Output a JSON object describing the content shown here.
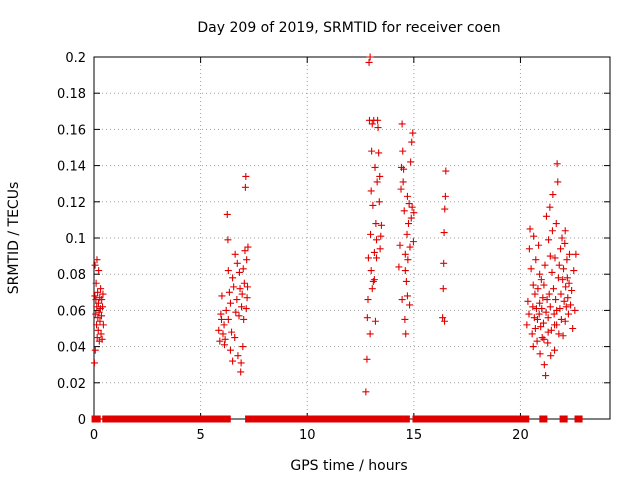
{
  "chart_data": {
    "type": "scatter",
    "title": "Day 209 of 2019, SRMTID for receiver coen",
    "xlabel": "GPS time / hours",
    "ylabel": "SRMTID / TECUs",
    "xlim": [
      0,
      24.2
    ],
    "ylim": [
      0,
      0.2
    ],
    "xticks": [
      0,
      5,
      10,
      15,
      20
    ],
    "xtick_labels": [
      "0",
      "5",
      "10",
      "15",
      "20"
    ],
    "yticks": [
      0,
      0.02,
      0.04,
      0.06,
      0.08,
      0.1,
      0.12,
      0.14,
      0.16,
      0.18,
      0.2
    ],
    "ytick_labels": [
      "0",
      "0.02",
      "0.04",
      "0.06",
      "0.08",
      "0.1",
      "0.12",
      "0.14",
      "0.16",
      "0.18",
      "0.2"
    ],
    "grid": true,
    "marker": "+",
    "series_color": "#e00000",
    "series": [
      {
        "name": "SRMTID",
        "points": [
          [
            0.02,
            0.031
          ],
          [
            0.04,
            0.068
          ],
          [
            0.05,
            0.085
          ],
          [
            0.06,
            0.038
          ],
          [
            0.08,
            0.058
          ],
          [
            0.09,
            0.066
          ],
          [
            0.1,
            0.075
          ],
          [
            0.12,
            0.052
          ],
          [
            0.13,
            0.062
          ],
          [
            0.14,
            0.088
          ],
          [
            0.15,
            0.045
          ],
          [
            0.17,
            0.07
          ],
          [
            0.18,
            0.056
          ],
          [
            0.2,
            0.049
          ],
          [
            0.21,
            0.064
          ],
          [
            0.22,
            0.082
          ],
          [
            0.24,
            0.059
          ],
          [
            0.25,
            0.043
          ],
          [
            0.27,
            0.067
          ],
          [
            0.28,
            0.054
          ],
          [
            0.3,
            0.061
          ],
          [
            0.31,
            0.072
          ],
          [
            0.33,
            0.047
          ],
          [
            0.35,
            0.057
          ],
          [
            0.36,
            0.066
          ],
          [
            0.38,
            0.044
          ],
          [
            0.4,
            0.062
          ],
          [
            0.42,
            0.069
          ],
          [
            0.44,
            0.052
          ],
          [
            5.85,
            0.049
          ],
          [
            5.9,
            0.043
          ],
          [
            5.95,
            0.058
          ],
          [
            6.0,
            0.068
          ],
          [
            6.05,
            0.047
          ],
          [
            6.1,
            0.052
          ],
          [
            6.15,
            0.044
          ],
          [
            6.2,
            0.06
          ],
          [
            6.25,
            0.113
          ],
          [
            6.28,
            0.099
          ],
          [
            6.3,
            0.055
          ],
          [
            6.35,
            0.07
          ],
          [
            6.4,
            0.064
          ],
          [
            6.45,
            0.048
          ],
          [
            6.5,
            0.078
          ],
          [
            6.55,
            0.073
          ],
          [
            6.6,
            0.045
          ],
          [
            6.62,
            0.091
          ],
          [
            6.65,
            0.059
          ],
          [
            6.7,
            0.066
          ],
          [
            6.72,
            0.086
          ],
          [
            6.75,
            0.035
          ],
          [
            6.8,
            0.057
          ],
          [
            6.82,
            0.081
          ],
          [
            6.85,
            0.072
          ],
          [
            6.88,
            0.026
          ],
          [
            6.9,
            0.031
          ],
          [
            6.92,
            0.062
          ],
          [
            6.95,
            0.069
          ],
          [
            6.98,
            0.04
          ],
          [
            7.0,
            0.083
          ],
          [
            7.02,
            0.055
          ],
          [
            7.05,
            0.075
          ],
          [
            7.08,
            0.093
          ],
          [
            7.1,
            0.128
          ],
          [
            7.12,
            0.134
          ],
          [
            7.14,
            0.061
          ],
          [
            7.16,
            0.088
          ],
          [
            7.18,
            0.067
          ],
          [
            7.2,
            0.073
          ],
          [
            7.22,
            0.095
          ],
          [
            6.4,
            0.038
          ],
          [
            6.3,
            0.082
          ],
          [
            6.5,
            0.032
          ],
          [
            5.98,
            0.055
          ],
          [
            6.12,
            0.041
          ],
          [
            12.75,
            0.015
          ],
          [
            12.8,
            0.033
          ],
          [
            12.82,
            0.056
          ],
          [
            12.85,
            0.066
          ],
          [
            12.87,
            0.089
          ],
          [
            12.9,
            0.197
          ],
          [
            12.92,
            0.165
          ],
          [
            12.95,
            0.2
          ],
          [
            12.97,
            0.102
          ],
          [
            13.0,
            0.126
          ],
          [
            13.02,
            0.148
          ],
          [
            13.05,
            0.163
          ],
          [
            13.08,
            0.118
          ],
          [
            13.1,
            0.076
          ],
          [
            13.12,
            0.165
          ],
          [
            13.15,
            0.092
          ],
          [
            13.18,
            0.139
          ],
          [
            13.2,
            0.054
          ],
          [
            13.22,
            0.108
          ],
          [
            13.25,
            0.089
          ],
          [
            13.28,
            0.131
          ],
          [
            13.3,
            0.165
          ],
          [
            13.32,
            0.161
          ],
          [
            13.35,
            0.147
          ],
          [
            13.38,
            0.12
          ],
          [
            13.4,
            0.134
          ],
          [
            13.42,
            0.094
          ],
          [
            13.45,
            0.101
          ],
          [
            13.48,
            0.107
          ],
          [
            13.0,
            0.082
          ],
          [
            12.95,
            0.047
          ],
          [
            13.05,
            0.072
          ],
          [
            13.15,
            0.077
          ],
          [
            13.25,
            0.099
          ],
          [
            14.3,
            0.084
          ],
          [
            14.35,
            0.096
          ],
          [
            14.4,
            0.127
          ],
          [
            14.42,
            0.139
          ],
          [
            14.45,
            0.163
          ],
          [
            14.48,
            0.148
          ],
          [
            14.5,
            0.131
          ],
          [
            14.52,
            0.138
          ],
          [
            14.55,
            0.115
          ],
          [
            14.58,
            0.055
          ],
          [
            14.6,
            0.091
          ],
          [
            14.62,
            0.047
          ],
          [
            14.65,
            0.076
          ],
          [
            14.68,
            0.102
          ],
          [
            14.7,
            0.123
          ],
          [
            14.72,
            0.088
          ],
          [
            14.75,
            0.108
          ],
          [
            14.78,
            0.119
          ],
          [
            14.8,
            0.063
          ],
          [
            14.82,
            0.095
          ],
          [
            14.85,
            0.142
          ],
          [
            14.88,
            0.111
          ],
          [
            14.9,
            0.153
          ],
          [
            14.92,
            0.117
          ],
          [
            14.95,
            0.158
          ],
          [
            14.98,
            0.098
          ],
          [
            15.0,
            0.114
          ],
          [
            14.7,
            0.068
          ],
          [
            14.6,
            0.082
          ],
          [
            14.45,
            0.066
          ],
          [
            16.35,
            0.056
          ],
          [
            16.38,
            0.072
          ],
          [
            16.4,
            0.086
          ],
          [
            16.42,
            0.103
          ],
          [
            16.45,
            0.116
          ],
          [
            16.48,
            0.123
          ],
          [
            16.5,
            0.137
          ],
          [
            16.44,
            0.054
          ],
          [
            20.3,
            0.052
          ],
          [
            20.35,
            0.065
          ],
          [
            20.4,
            0.058
          ],
          [
            20.42,
            0.094
          ],
          [
            20.45,
            0.105
          ],
          [
            20.5,
            0.083
          ],
          [
            20.55,
            0.047
          ],
          [
            20.58,
            0.062
          ],
          [
            20.6,
            0.074
          ],
          [
            20.62,
            0.101
          ],
          [
            20.65,
            0.056
          ],
          [
            20.68,
            0.069
          ],
          [
            20.7,
            0.05
          ],
          [
            20.72,
            0.088
          ],
          [
            20.75,
            0.061
          ],
          [
            20.78,
            0.043
          ],
          [
            20.8,
            0.055
          ],
          [
            20.82,
            0.072
          ],
          [
            20.85,
            0.096
          ],
          [
            20.88,
            0.058
          ],
          [
            20.9,
            0.064
          ],
          [
            20.92,
            0.036
          ],
          [
            20.95,
            0.051
          ],
          [
            20.98,
            0.077
          ],
          [
            21.0,
            0.061
          ],
          [
            21.02,
            0.045
          ],
          [
            21.05,
            0.067
          ],
          [
            21.08,
            0.053
          ],
          [
            21.1,
            0.074
          ],
          [
            21.12,
            0.03
          ],
          [
            21.15,
            0.085
          ],
          [
            21.18,
            0.024
          ],
          [
            21.2,
            0.059
          ],
          [
            21.22,
            0.112
          ],
          [
            21.25,
            0.066
          ],
          [
            21.28,
            0.042
          ],
          [
            21.3,
            0.056
          ],
          [
            21.32,
            0.099
          ],
          [
            21.35,
            0.069
          ],
          [
            21.38,
            0.117
          ],
          [
            21.4,
            0.062
          ],
          [
            21.42,
            0.035
          ],
          [
            21.45,
            0.049
          ],
          [
            21.48,
            0.081
          ],
          [
            21.5,
            0.104
          ],
          [
            21.52,
            0.124
          ],
          [
            21.55,
            0.072
          ],
          [
            21.58,
            0.058
          ],
          [
            21.6,
            0.038
          ],
          [
            21.62,
            0.089
          ],
          [
            21.65,
            0.066
          ],
          [
            21.68,
            0.108
          ],
          [
            21.7,
            0.052
          ],
          [
            21.72,
            0.141
          ],
          [
            21.75,
            0.131
          ],
          [
            21.78,
            0.078
          ],
          [
            21.8,
            0.047
          ],
          [
            21.82,
            0.085
          ],
          [
            21.85,
            0.061
          ],
          [
            21.88,
            0.094
          ],
          [
            21.9,
            0.069
          ],
          [
            21.92,
            0.055
          ],
          [
            21.95,
            0.1
          ],
          [
            21.98,
            0.077
          ],
          [
            22.0,
            0.046
          ],
          [
            22.02,
            0.083
          ],
          [
            22.05,
            0.065
          ],
          [
            22.08,
            0.097
          ],
          [
            22.1,
            0.054
          ],
          [
            22.12,
            0.073
          ],
          [
            22.15,
            0.062
          ],
          [
            22.18,
            0.088
          ],
          [
            22.2,
            0.078
          ],
          [
            22.22,
            0.067
          ],
          [
            22.25,
            0.058
          ],
          [
            22.28,
            0.075
          ],
          [
            22.3,
            0.091
          ],
          [
            22.35,
            0.063
          ],
          [
            22.4,
            0.071
          ],
          [
            22.45,
            0.05
          ],
          [
            22.5,
            0.082
          ],
          [
            22.55,
            0.06
          ],
          [
            22.6,
            0.091
          ],
          [
            21.1,
            0.044
          ],
          [
            21.3,
            0.048
          ],
          [
            21.6,
            0.052
          ],
          [
            21.4,
            0.09
          ],
          [
            20.9,
            0.08
          ],
          [
            21.7,
            0.06
          ],
          [
            22.1,
            0.104
          ],
          [
            20.6,
            0.04
          ]
        ],
        "zero_runs": [
          [
            0.05,
            0.15
          ],
          [
            0.55,
            5.75
          ],
          [
            6.05,
            6.25
          ],
          [
            7.25,
            12.85
          ],
          [
            13.15,
            13.95
          ],
          [
            14.1,
            14.15
          ],
          [
            14.35,
            14.65
          ],
          [
            15.1,
            20.25
          ],
          [
            21.05,
            21.1
          ],
          [
            22.0,
            22.05
          ],
          [
            22.7,
            22.75
          ]
        ]
      }
    ]
  }
}
